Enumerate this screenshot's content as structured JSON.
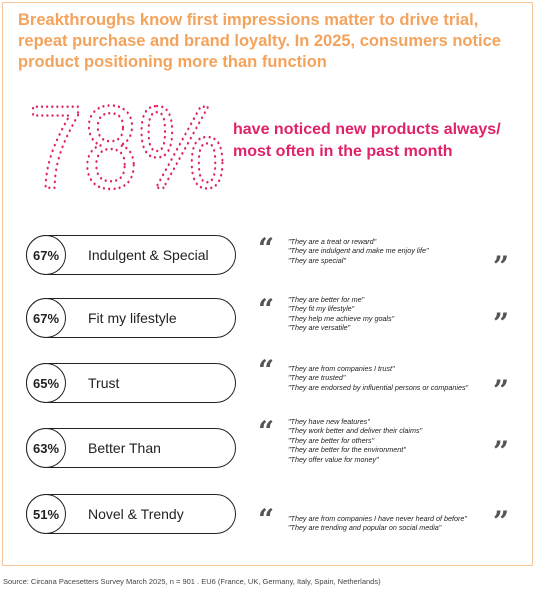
{
  "headline": "Breakthroughs know first impressions matter to drive trial, repeat purchase and brand loyalty. In 2025, consumers notice product positioning more than function",
  "big_stat": {
    "value": "78%",
    "caption_line1": "have noticed new products always/",
    "caption_line2": "most often in the past month"
  },
  "colors": {
    "accent_orange": "#f4a35d",
    "accent_pink": "#e0226b",
    "frame": "#f5c79a"
  },
  "rows": [
    {
      "pct": "67%",
      "label": "Indulgent & Special",
      "quotes": [
        "\"They are a treat or reward\"",
        "\"They are indulgent and make me enjoy life\"",
        "\"They are special\""
      ]
    },
    {
      "pct": "67%",
      "label": "Fit my lifestyle",
      "quotes": [
        "\"They are better for me\"",
        "\"They fit my lifestyle\"",
        "\"They help me achieve my goals\"",
        "\"They are versatile\""
      ]
    },
    {
      "pct": "65%",
      "label": "Trust",
      "quotes": [
        "\"They are from companies I trust\"",
        "\"They are trusted\"",
        "\"They are endorsed by influential persons or companies\""
      ]
    },
    {
      "pct": "63%",
      "label": "Better Than",
      "quotes": [
        "\"They have new features\"",
        "\"They work better and deliver their claims\"",
        "\"They are better for others\"",
        "\"They are better for the environment\"",
        "\"They offer value for money\""
      ]
    },
    {
      "pct": "51%",
      "label": "Novel & Trendy",
      "quotes": [
        "\"They are from companies I have never heard of before\"",
        "\"They are trending and popular on social media\""
      ]
    }
  ],
  "quote_marks": {
    "open": "“",
    "close": "”"
  },
  "source": "Source: Circana Pacesetters Survey March 2025, n = 901 . EU6 (France, UK, Germany, Italy, Spain, Netherlands)"
}
